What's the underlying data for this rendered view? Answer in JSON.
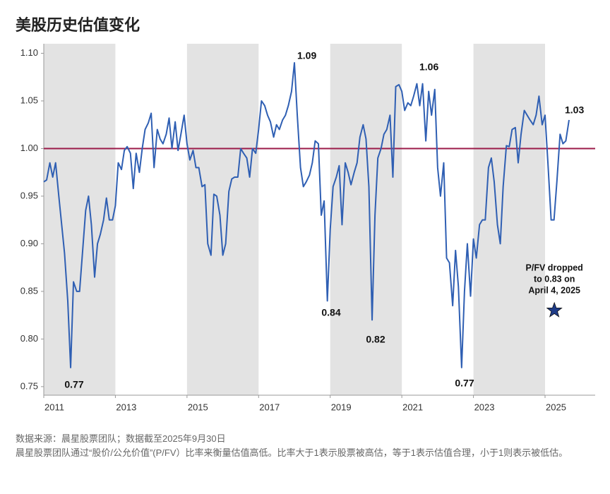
{
  "chart_data": {
    "type": "line",
    "title": "美股历史估值变化",
    "x": [
      2011.0,
      2011.08,
      2011.17,
      2011.25,
      2011.33,
      2011.42,
      2011.5,
      2011.58,
      2011.67,
      2011.75,
      2011.83,
      2011.92,
      2012.0,
      2012.08,
      2012.17,
      2012.25,
      2012.33,
      2012.42,
      2012.5,
      2012.58,
      2012.67,
      2012.75,
      2012.83,
      2012.92,
      2013.0,
      2013.08,
      2013.17,
      2013.25,
      2013.33,
      2013.42,
      2013.5,
      2013.58,
      2013.67,
      2013.75,
      2013.83,
      2013.92,
      2014.0,
      2014.08,
      2014.17,
      2014.25,
      2014.33,
      2014.42,
      2014.5,
      2014.58,
      2014.67,
      2014.75,
      2014.83,
      2014.92,
      2015.0,
      2015.08,
      2015.17,
      2015.25,
      2015.33,
      2015.42,
      2015.5,
      2015.58,
      2015.67,
      2015.75,
      2015.83,
      2015.92,
      2016.0,
      2016.08,
      2016.17,
      2016.25,
      2016.33,
      2016.42,
      2016.5,
      2016.58,
      2016.67,
      2016.75,
      2016.83,
      2016.92,
      2017.0,
      2017.08,
      2017.17,
      2017.25,
      2017.33,
      2017.42,
      2017.5,
      2017.58,
      2017.67,
      2017.75,
      2017.83,
      2017.92,
      2018.0,
      2018.08,
      2018.17,
      2018.25,
      2018.33,
      2018.42,
      2018.5,
      2018.58,
      2018.67,
      2018.75,
      2018.83,
      2018.92,
      2019.0,
      2019.08,
      2019.17,
      2019.25,
      2019.33,
      2019.42,
      2019.5,
      2019.58,
      2019.67,
      2019.75,
      2019.83,
      2019.92,
      2020.0,
      2020.08,
      2020.17,
      2020.25,
      2020.33,
      2020.42,
      2020.5,
      2020.58,
      2020.67,
      2020.75,
      2020.83,
      2020.92,
      2021.0,
      2021.08,
      2021.17,
      2021.25,
      2021.33,
      2021.42,
      2021.5,
      2021.58,
      2021.67,
      2021.75,
      2021.83,
      2021.92,
      2022.0,
      2022.08,
      2022.17,
      2022.25,
      2022.33,
      2022.42,
      2022.5,
      2022.58,
      2022.67,
      2022.75,
      2022.83,
      2022.92,
      2023.0,
      2023.08,
      2023.17,
      2023.25,
      2023.33,
      2023.42,
      2023.5,
      2023.58,
      2023.67,
      2023.75,
      2023.83,
      2023.92,
      2024.0,
      2024.08,
      2024.17,
      2024.25,
      2024.33,
      2024.42,
      2024.5,
      2024.58,
      2024.67,
      2024.75,
      2024.83,
      2024.92,
      2025.0,
      2025.08,
      2025.17,
      2025.25,
      2025.33,
      2025.42,
      2025.5,
      2025.58,
      2025.67
    ],
    "series": [
      {
        "name": "P/FV",
        "color": "#2f5fb3",
        "values": [
          0.965,
          0.967,
          0.985,
          0.97,
          0.985,
          0.95,
          0.92,
          0.89,
          0.84,
          0.77,
          0.86,
          0.85,
          0.85,
          0.89,
          0.935,
          0.95,
          0.92,
          0.865,
          0.9,
          0.91,
          0.925,
          0.948,
          0.925,
          0.925,
          0.94,
          0.985,
          0.978,
          0.998,
          1.002,
          0.995,
          0.958,
          0.995,
          0.975,
          1.0,
          1.02,
          1.027,
          1.037,
          0.98,
          1.02,
          1.01,
          1.005,
          1.015,
          1.032,
          1.0,
          1.028,
          0.998,
          1.015,
          1.035,
          1.005,
          0.988,
          0.998,
          0.98,
          0.98,
          0.96,
          0.962,
          0.9,
          0.888,
          0.952,
          0.95,
          0.93,
          0.888,
          0.9,
          0.955,
          0.968,
          0.97,
          0.97,
          1.0,
          0.995,
          0.99,
          0.97,
          1.0,
          0.995,
          1.02,
          1.05,
          1.045,
          1.035,
          1.028,
          1.012,
          1.025,
          1.02,
          1.03,
          1.035,
          1.045,
          1.06,
          1.09,
          1.035,
          0.98,
          0.96,
          0.965,
          0.972,
          0.985,
          1.008,
          1.005,
          0.93,
          0.945,
          0.84,
          0.915,
          0.96,
          0.97,
          0.982,
          0.92,
          0.985,
          0.975,
          0.962,
          0.975,
          0.985,
          1.012,
          1.025,
          1.01,
          0.96,
          0.82,
          0.93,
          0.99,
          1.0,
          1.015,
          1.02,
          1.035,
          0.97,
          1.065,
          1.067,
          1.06,
          1.04,
          1.048,
          1.045,
          1.055,
          1.068,
          1.045,
          1.068,
          1.008,
          1.06,
          1.035,
          1.062,
          0.98,
          0.95,
          0.985,
          0.885,
          0.88,
          0.835,
          0.893,
          0.855,
          0.77,
          0.85,
          0.9,
          0.845,
          0.905,
          0.885,
          0.92,
          0.925,
          0.925,
          0.98,
          0.99,
          0.965,
          0.92,
          0.9,
          0.96,
          1.003,
          1.002,
          1.02,
          1.022,
          0.985,
          1.015,
          1.04,
          1.035,
          1.03,
          1.025,
          1.035,
          1.055,
          1.025,
          1.035,
          0.985,
          0.925,
          0.925,
          0.965,
          1.015,
          1.005,
          1.008,
          1.03
        ]
      }
    ],
    "xlim": [
      2011,
      2026.4
    ],
    "xticks": [
      2011,
      2013,
      2015,
      2017,
      2019,
      2021,
      2023,
      2025
    ],
    "ylim": [
      0.741,
      1.11
    ],
    "yticks": [
      {
        "value": 1.1,
        "label": "1.10"
      },
      1.05,
      {
        "value": 1.0,
        "label": "1.00"
      },
      0.95,
      {
        "value": 0.9,
        "label": "0.90"
      },
      0.85,
      {
        "value": 0.8,
        "label": "0.80"
      },
      0.75
    ],
    "reference_line": {
      "value": 1.0,
      "color": "#9b1b4a"
    },
    "shading_color": "#e3e3e3",
    "annotations": [
      "1.09",
      "1.06",
      "1.03",
      "0.84",
      "0.82",
      "0.77",
      "0.77"
    ],
    "marker": {
      "x": 2025.26,
      "y": 0.83,
      "color": "#1f3c88",
      "label": [
        "P/FV dropped",
        "to 0.83 on",
        "April 4, 2025"
      ]
    },
    "notes": [
      "数据来源：晨星股票团队；数据截至2025年9月30日",
      "晨星股票团队通过“股价/公允价值”(P/FV）比率来衡量估值高低。比率大于1表示股票被高估，等于1表示估值合理，小于1则表示被低估。"
    ]
  }
}
